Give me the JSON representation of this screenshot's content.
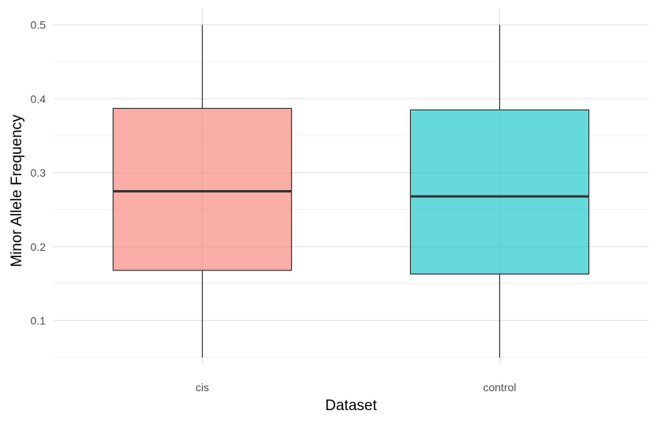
{
  "chart_data": {
    "type": "box",
    "title": "",
    "xlabel": "Dataset",
    "ylabel": "Minor Allele Frequency",
    "ylim": [
      0.05,
      0.5
    ],
    "y_ticks": [
      0.1,
      0.2,
      0.3,
      0.4,
      0.5
    ],
    "y_tick_labels": [
      "0.1",
      "0.2",
      "0.3",
      "0.4",
      "0.5"
    ],
    "grid": true,
    "legend": "none",
    "categories": [
      "cis",
      "control"
    ],
    "boxes": [
      {
        "category": "cis",
        "min": 0.05,
        "q1": 0.168,
        "median": 0.275,
        "q3": 0.387,
        "max": 0.5,
        "color": "#F8766D"
      },
      {
        "category": "control",
        "min": 0.05,
        "q1": 0.163,
        "median": 0.268,
        "q3": 0.385,
        "max": 0.5,
        "color": "#00BFC4"
      }
    ]
  }
}
